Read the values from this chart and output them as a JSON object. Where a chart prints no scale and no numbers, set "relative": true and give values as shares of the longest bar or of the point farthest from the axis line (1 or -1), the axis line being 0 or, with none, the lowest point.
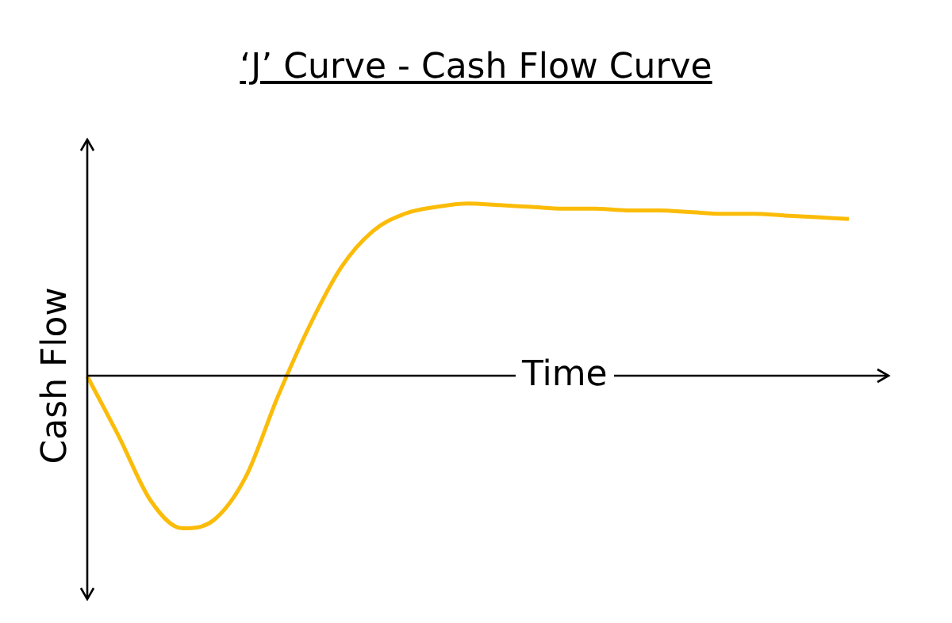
{
  "chart_data": {
    "type": "line",
    "title": "‘J’ Curve - Cash Flow Curve",
    "xlabel": "Time",
    "ylabel": "Cash Flow",
    "relative": true,
    "marker": "none",
    "categories": [
      null,
      null,
      null,
      null,
      null,
      null,
      null,
      null,
      null,
      null,
      null,
      null,
      null,
      null,
      null,
      null,
      null,
      null,
      null,
      null,
      null,
      null,
      null,
      null,
      null
    ],
    "series": [
      {
        "color": "#fbbc09",
        "values": [
          0,
          -0.35,
          -0.72,
          -0.88,
          -0.83,
          -0.58,
          -0.12,
          0.29,
          0.63,
          0.84,
          0.94,
          0.98,
          1,
          0.99,
          0.98,
          0.97,
          0.97,
          0.96,
          0.96,
          0.95,
          0.94,
          0.94,
          0.93,
          0.92,
          0.91
        ]
      }
    ]
  }
}
